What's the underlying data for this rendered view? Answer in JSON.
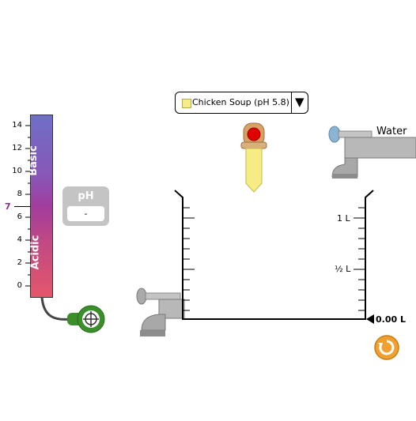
{
  "solute_selector": {
    "swatch_color": "#f7ec8a",
    "selected": "Chicken Soup (pH 5.8)"
  },
  "faucets": {
    "water_label": "Water"
  },
  "ph_meter": {
    "title": "pH",
    "value": "-",
    "scale_top_label": "Basic",
    "scale_bottom_label": "Acidic",
    "scale_ticks": [
      "14",
      "12",
      "10",
      "8",
      "6",
      "4",
      "2",
      "0"
    ],
    "neutral_marker": "7"
  },
  "beaker": {
    "label_1L": "1 L",
    "label_half": "½ L",
    "volume_reading": "0.00 L"
  },
  "colors": {
    "accent": "#f0a030",
    "probe": "#3b8f2a",
    "dropper_bulb": "#e00000"
  },
  "icons": [
    "reset-icon",
    "dropdown-arrow-icon",
    "crosshair-icon"
  ]
}
